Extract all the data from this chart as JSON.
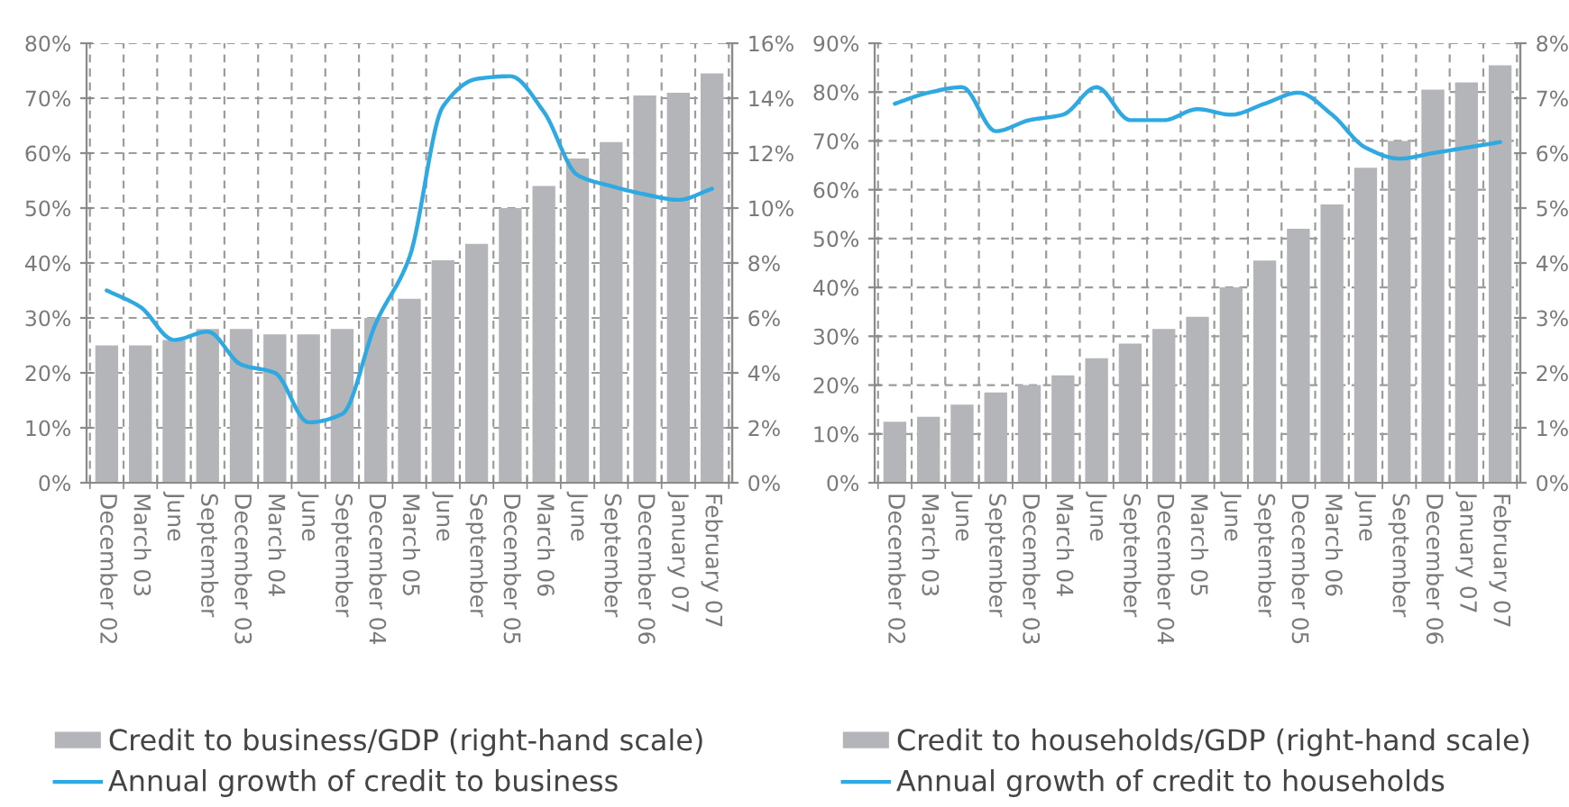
{
  "chart_data": [
    {
      "type": "bar",
      "categories": [
        "December 02",
        "March 03",
        "June",
        "September",
        "December 03",
        "March 04",
        "June",
        "September",
        "December 04",
        "March 05",
        "June",
        "September",
        "December 05",
        "March 06",
        "June",
        "September",
        "December 06",
        "January 07",
        "February 07"
      ],
      "series": [
        {
          "name": "Credit to business/GDP (right-hand scale)",
          "color": "#b4b5b8",
          "values": [
            25,
            25,
            26,
            28,
            28,
            27,
            27,
            28,
            30,
            33.5,
            40.5,
            43.5,
            50,
            54,
            59,
            62,
            70.5,
            71,
            74.5
          ]
        },
        {
          "name": "Annual growth of credit to business",
          "type": "line",
          "axis": "y2",
          "color": "#2fa9e1",
          "values": [
            7.0,
            6.4,
            5.2,
            5.5,
            4.3,
            4.0,
            2.2,
            2.5,
            5.8,
            8.2,
            13.7,
            14.7,
            14.8,
            13.5,
            11.2,
            10.8,
            10.5,
            10.3,
            10.7
          ]
        }
      ],
      "ylim": [
        0,
        80
      ],
      "yticks": [
        {
          "value": 0,
          "label": "0%"
        },
        {
          "value": 10,
          "label": "10%"
        },
        {
          "value": 20,
          "label": "20%"
        },
        {
          "value": 30,
          "label": "30%"
        },
        {
          "value": 40,
          "label": "40%"
        },
        {
          "value": 50,
          "label": "50%"
        },
        {
          "value": 60,
          "label": "60%"
        },
        {
          "value": 70,
          "label": "70%"
        },
        {
          "value": 80,
          "label": "80%"
        }
      ],
      "y2lim": [
        0,
        16
      ],
      "y2ticks": [
        {
          "value": 0,
          "label": "0%"
        },
        {
          "value": 2,
          "label": "2%"
        },
        {
          "value": 4,
          "label": "4%"
        },
        {
          "value": 6,
          "label": "6%"
        },
        {
          "value": 8,
          "label": "8%"
        },
        {
          "value": 10,
          "label": "10%"
        },
        {
          "value": 12,
          "label": "12%"
        },
        {
          "value": 14,
          "label": "14%"
        },
        {
          "value": 16,
          "label": "16%"
        }
      ],
      "grid": true,
      "legend": "bottom"
    },
    {
      "type": "bar",
      "categories": [
        "December 02",
        "March 03",
        "June",
        "September",
        "December 03",
        "March 04",
        "June",
        "September",
        "December 04",
        "March 05",
        "June",
        "September",
        "December 05",
        "March 06",
        "June",
        "September",
        "December 06",
        "January 07",
        "February 07"
      ],
      "series": [
        {
          "name": "Credit to households/GDP (right-hand scale)",
          "color": "#b4b5b8",
          "values": [
            12.5,
            13.5,
            16,
            18.5,
            20,
            22,
            25.5,
            28.5,
            31.5,
            34,
            40,
            45.5,
            52,
            57,
            64.5,
            70,
            80.5,
            82,
            85.5
          ]
        },
        {
          "name": "Annual growth of credit to households",
          "type": "line",
          "axis": "y2",
          "color": "#2fa9e1",
          "values": [
            6.9,
            7.1,
            7.2,
            6.4,
            6.6,
            6.7,
            7.2,
            6.6,
            6.6,
            6.8,
            6.7,
            6.9,
            7.1,
            6.7,
            6.1,
            5.9,
            6.0,
            6.1,
            6.2
          ]
        }
      ],
      "ylim": [
        0,
        90
      ],
      "yticks": [
        {
          "value": 0,
          "label": "0%"
        },
        {
          "value": 10,
          "label": "10%"
        },
        {
          "value": 20,
          "label": "20%"
        },
        {
          "value": 30,
          "label": "30%"
        },
        {
          "value": 40,
          "label": "40%"
        },
        {
          "value": 50,
          "label": "50%"
        },
        {
          "value": 60,
          "label": "60%"
        },
        {
          "value": 70,
          "label": "70%"
        },
        {
          "value": 80,
          "label": "80%"
        },
        {
          "value": 90,
          "label": "90%"
        }
      ],
      "y2lim": [
        0,
        8
      ],
      "y2ticks": [
        {
          "value": 0,
          "label": "0%"
        },
        {
          "value": 1,
          "label": "1%"
        },
        {
          "value": 2,
          "label": "2%"
        },
        {
          "value": 3,
          "label": "3%"
        },
        {
          "value": 4,
          "label": "4%"
        },
        {
          "value": 5,
          "label": "5%"
        },
        {
          "value": 6,
          "label": "6%"
        },
        {
          "value": 7,
          "label": "7%"
        },
        {
          "value": 8,
          "label": "8%"
        }
      ],
      "grid": true,
      "legend": "bottom"
    }
  ]
}
